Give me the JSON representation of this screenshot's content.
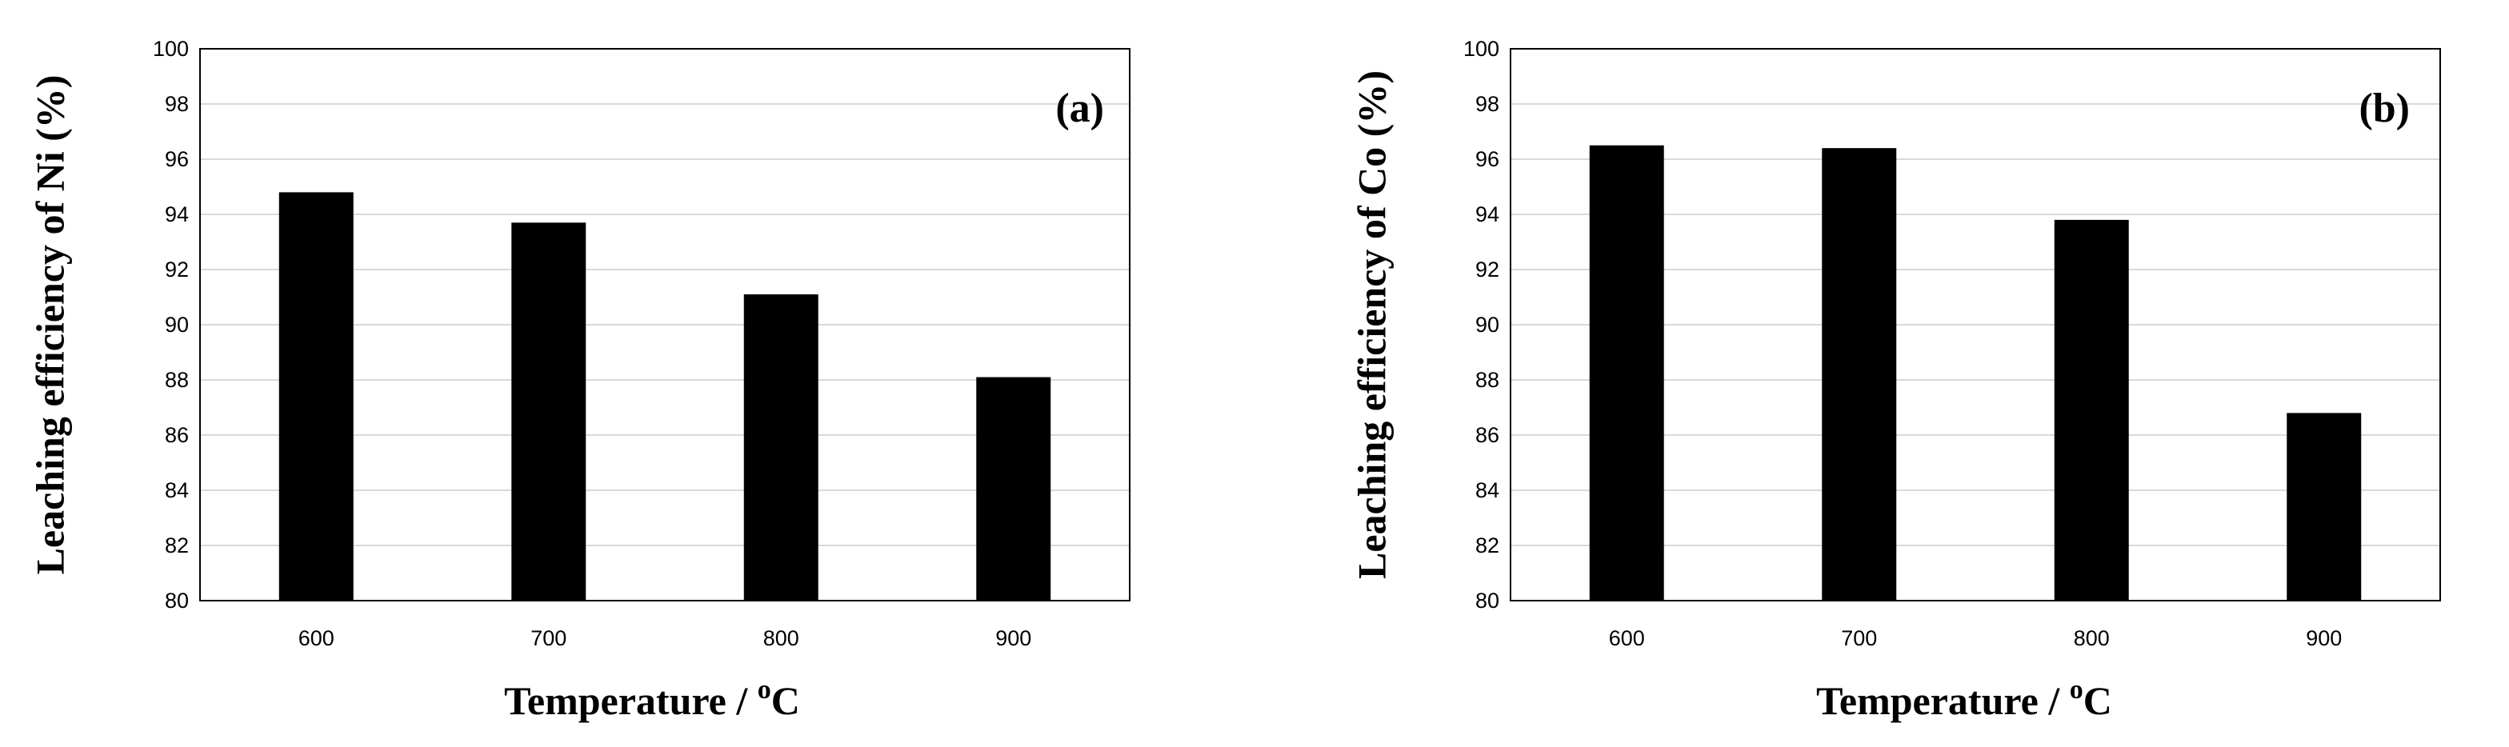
{
  "chart_data": [
    {
      "type": "bar",
      "panel_label": "(a)",
      "categories": [
        "600",
        "700",
        "800",
        "900"
      ],
      "values": [
        94.8,
        93.7,
        91.1,
        88.1
      ],
      "ylabel": "Leaching efficiency of Ni (%)",
      "xlabel_main": "Temperature / ",
      "xlabel_sup": "o",
      "xlabel_unit": "C",
      "ylim": [
        80,
        100
      ],
      "yticks": [
        "80",
        "82",
        "84",
        "86",
        "88",
        "90",
        "92",
        "94",
        "96",
        "98",
        "100"
      ],
      "grid": true,
      "bar_color": "#000000"
    },
    {
      "type": "bar",
      "panel_label": "(b)",
      "categories": [
        "600",
        "700",
        "800",
        "900"
      ],
      "values": [
        96.5,
        96.4,
        93.8,
        86.8
      ],
      "ylabel": "Leaching efficiency of Co (%)",
      "xlabel_main": "Temperature / ",
      "xlabel_sup": "o",
      "xlabel_unit": "C",
      "ylim": [
        80,
        100
      ],
      "yticks": [
        "80",
        "82",
        "84",
        "86",
        "88",
        "90",
        "92",
        "94",
        "96",
        "98",
        "100"
      ],
      "grid": true,
      "bar_color": "#000000"
    }
  ]
}
